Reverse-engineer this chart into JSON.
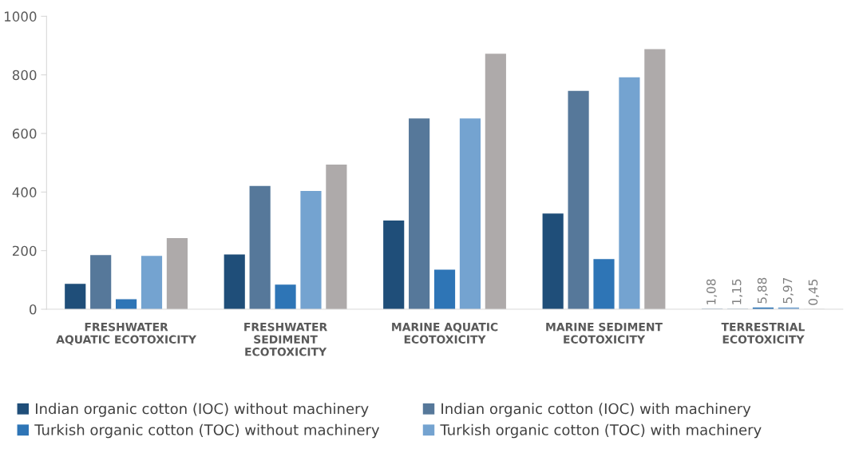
{
  "chart_data": {
    "type": "bar",
    "categories": [
      "FRESHWATER\nAQUATIC ECOTOXICITY",
      "FRESHWATER\nSEDIMENT\nECOTOXICITY",
      "MARINE AQUATIC\nECOTOXICITY",
      "MARINE SEDIMENT\nECOTOXICITY",
      "TERRESTRIAL\nECOTOXICITY"
    ],
    "series": [
      {
        "name": "Indian organic cotton (IOC) without machinery",
        "color": "#1f4e79",
        "values": [
          87,
          187,
          303,
          327,
          1.08
        ],
        "value_labels": [
          null,
          null,
          null,
          null,
          "1,08"
        ]
      },
      {
        "name": "Indian organic cotton (IOC) with machinery",
        "color": "#56789a",
        "values": [
          185,
          421,
          651,
          745,
          1.15
        ],
        "value_labels": [
          null,
          null,
          null,
          null,
          "1,15"
        ]
      },
      {
        "name": "Turkish organic cotton (TOC) without machinery",
        "color": "#2e75b6",
        "values": [
          34,
          84,
          135,
          171,
          5.88
        ],
        "value_labels": [
          null,
          null,
          null,
          null,
          "5,88"
        ]
      },
      {
        "name": "Turkish organic cotton (TOC) with machinery",
        "color": "#74a3d0",
        "values": [
          182,
          404,
          651,
          792,
          5.97
        ],
        "value_labels": [
          null,
          null,
          null,
          null,
          "5,97"
        ]
      },
      {
        "color": "#aeaaaa",
        "values": [
          243,
          494,
          872,
          888,
          0.45
        ],
        "value_labels": [
          null,
          null,
          null,
          null,
          "0,45"
        ]
      }
    ],
    "ylim": [
      0,
      1000
    ],
    "yticks": [
      0,
      200,
      400,
      600,
      800,
      1000
    ],
    "grid": false,
    "legend": "bottom"
  }
}
